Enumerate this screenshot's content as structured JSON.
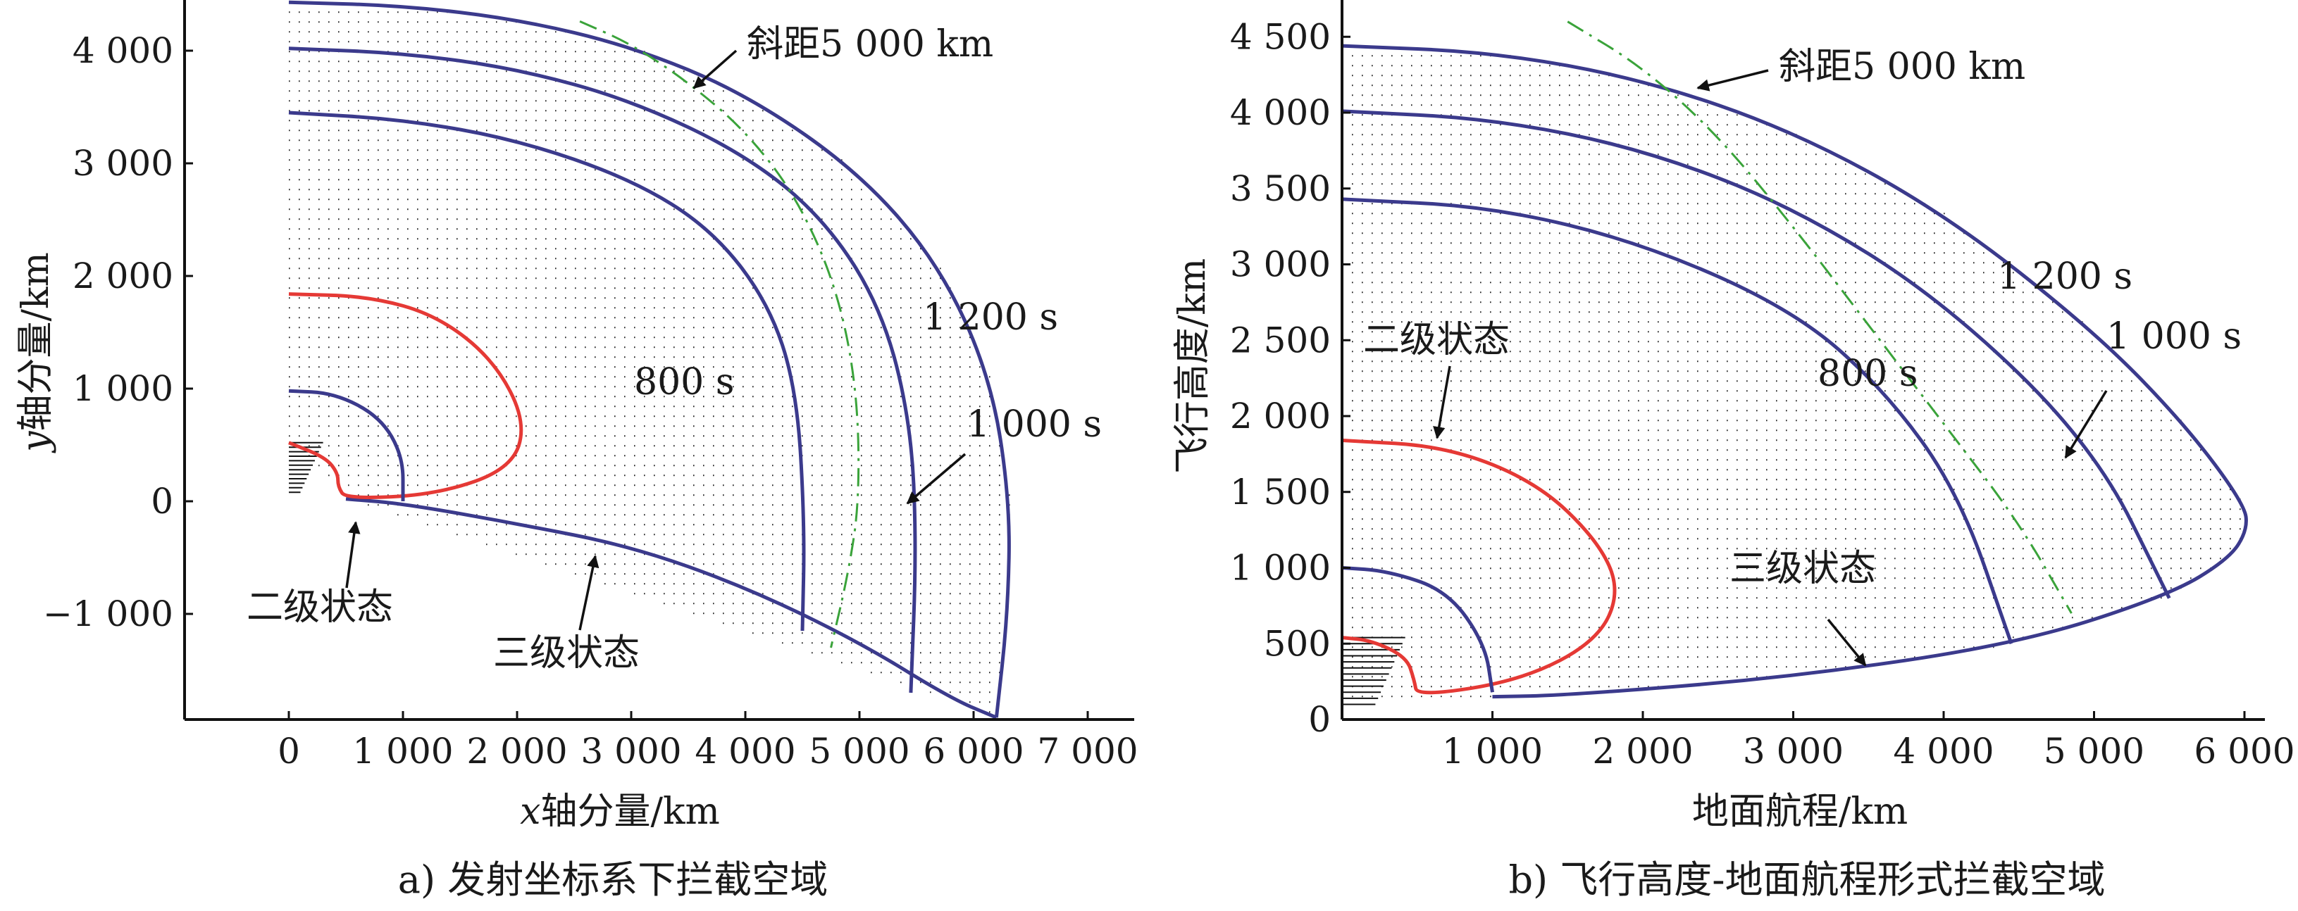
{
  "chart_data": [
    {
      "id": "a",
      "type": "line",
      "title": "a) 发射坐标系下拦截空域",
      "xlabel_italic": "x",
      "xlabel_rest": "轴分量/km",
      "ylabel_italic": "y",
      "ylabel_rest": "轴分量/km",
      "xlim": [
        -900,
        7000
      ],
      "ylim": [
        -1900,
        4450
      ],
      "xticks": [
        0,
        1000,
        2000,
        3000,
        4000,
        5000,
        6000,
        7000
      ],
      "xtick_labels": [
        "0",
        "1 000",
        "2 000",
        "3 000",
        "4 000",
        "5 000",
        "6 000",
        "7 000"
      ],
      "yticks": [
        -1000,
        0,
        1000,
        2000,
        3000,
        4000
      ],
      "ytick_labels": [
        "−1 000",
        "0",
        "1 000",
        "2 000",
        "3 000",
        "4 000"
      ],
      "series": [
        {
          "name": "1 200 s",
          "color": "#3b3a8c",
          "points": [
            [
              0,
              4430
            ],
            [
              1000,
              4400
            ],
            [
              2000,
              4280
            ],
            [
              3000,
              4040
            ],
            [
              4000,
              3620
            ],
            [
              5000,
              2920
            ],
            [
              5700,
              2100
            ],
            [
              6150,
              1100
            ],
            [
              6320,
              0
            ],
            [
              6300,
              -1000
            ],
            [
              6200,
              -1920
            ]
          ]
        },
        {
          "name": "1 000 s",
          "color": "#3b3a8c",
          "points": [
            [
              0,
              4020
            ],
            [
              1000,
              3980
            ],
            [
              2000,
              3840
            ],
            [
              3000,
              3560
            ],
            [
              4000,
              3080
            ],
            [
              4700,
              2500
            ],
            [
              5200,
              1700
            ],
            [
              5450,
              700
            ],
            [
              5500,
              -400
            ],
            [
              5450,
              -1700
            ]
          ]
        },
        {
          "name": "800 s",
          "color": "#3b3a8c",
          "points": [
            [
              0,
              3450
            ],
            [
              1000,
              3390
            ],
            [
              2000,
              3210
            ],
            [
              3000,
              2860
            ],
            [
              3700,
              2420
            ],
            [
              4200,
              1770
            ],
            [
              4450,
              1000
            ],
            [
              4520,
              -200
            ],
            [
              4500,
              -1150
            ]
          ]
        },
        {
          "name": "三级状态",
          "color": "#3b3a8c",
          "points": [
            [
              500,
              20
            ],
            [
              1000,
              -20
            ],
            [
              2000,
              -200
            ],
            [
              3000,
              -400
            ],
            [
              4000,
              -760
            ],
            [
              5000,
              -1250
            ],
            [
              5800,
              -1750
            ],
            [
              6200,
              -1920
            ]
          ]
        },
        {
          "name": "二级状态",
          "color": "#e53935",
          "points": [
            [
              0,
              1840
            ],
            [
              700,
              1820
            ],
            [
              1300,
              1650
            ],
            [
              1800,
              1250
            ],
            [
              2080,
              700
            ],
            [
              1950,
              290
            ],
            [
              1300,
              60
            ],
            [
              500,
              20
            ],
            [
              430,
              130
            ],
            [
              430,
              250
            ],
            [
              320,
              390
            ],
            [
              0,
              520
            ]
          ]
        },
        {
          "name": "",
          "color": "#3b3a8c",
          "points": [
            [
              0,
              980
            ],
            [
              400,
              960
            ],
            [
              800,
              750
            ],
            [
              1000,
              400
            ],
            [
              1000,
              0
            ]
          ]
        },
        {
          "name": "斜距5 000 km",
          "color": "#3aa33a",
          "points": [
            [
              2550,
              4260
            ],
            [
              3000,
              4060
            ],
            [
              3500,
              3720
            ],
            [
              4000,
              3290
            ],
            [
              4450,
              2700
            ],
            [
              4800,
              1900
            ],
            [
              4980,
              1000
            ],
            [
              5000,
              0
            ],
            [
              4900,
              -650
            ],
            [
              4750,
              -1300
            ]
          ]
        }
      ],
      "annotations": [
        "斜距5 000 km",
        "1 200 s",
        "800 s",
        "1 000 s",
        "二级状态",
        "三级状态"
      ]
    },
    {
      "id": "b",
      "type": "line",
      "title": "b) 飞行高度-地面航程形式拦截空域",
      "xlabel": "地面航程/km",
      "ylabel": "飞行高度/km",
      "xlim": [
        0,
        6050
      ],
      "ylim": [
        0,
        4650
      ],
      "xticks": [
        1000,
        2000,
        3000,
        4000,
        5000,
        6000
      ],
      "xtick_labels": [
        "1 000",
        "2 000",
        "3 000",
        "4 000",
        "5 000",
        "6 000"
      ],
      "yticks": [
        0,
        500,
        1000,
        1500,
        2000,
        2500,
        3000,
        3500,
        4000,
        4500
      ],
      "ytick_labels": [
        "0",
        "500",
        "1 000",
        "1 500",
        "2 000",
        "2 500",
        "3 000",
        "3 500",
        "4 000",
        "4 500"
      ],
      "series": [
        {
          "name": "1 200 s",
          "color": "#3b3a8c",
          "points": [
            [
              0,
              4440
            ],
            [
              1000,
              4400
            ],
            [
              2000,
              4220
            ],
            [
              3000,
              3880
            ],
            [
              4000,
              3340
            ],
            [
              5000,
              2560
            ],
            [
              5600,
              1950
            ],
            [
              6000,
              1420
            ],
            [
              6020,
              1250
            ],
            [
              5900,
              1060
            ],
            [
              5500,
              820
            ],
            [
              4500,
              500
            ],
            [
              3000,
              280
            ],
            [
              1500,
              160
            ],
            [
              1000,
              150
            ]
          ]
        },
        {
          "name": "1 000 s",
          "color": "#3b3a8c",
          "points": [
            [
              0,
              4010
            ],
            [
              1000,
              3960
            ],
            [
              2000,
              3760
            ],
            [
              3000,
              3380
            ],
            [
              4000,
              2760
            ],
            [
              5000,
              1800
            ],
            [
              5500,
              800
            ]
          ]
        },
        {
          "name": "800 s",
          "color": "#3b3a8c",
          "points": [
            [
              0,
              3430
            ],
            [
              1000,
              3380
            ],
            [
              2000,
              3140
            ],
            [
              3000,
              2700
            ],
            [
              3600,
              2180
            ],
            [
              4100,
              1500
            ],
            [
              4450,
              500
            ]
          ]
        },
        {
          "name": "二级状态",
          "color": "#e53935",
          "points": [
            [
              0,
              1840
            ],
            [
              700,
              1800
            ],
            [
              1300,
              1560
            ],
            [
              1700,
              1180
            ],
            [
              1850,
              850
            ],
            [
              1700,
              520
            ],
            [
              1200,
              260
            ],
            [
              500,
              150
            ],
            [
              480,
              260
            ],
            [
              430,
              410
            ],
            [
              200,
              520
            ],
            [
              0,
              540
            ]
          ]
        },
        {
          "name": "",
          "color": "#3b3a8c",
          "points": [
            [
              0,
              1000
            ],
            [
              300,
              980
            ],
            [
              700,
              850
            ],
            [
              950,
              500
            ],
            [
              1000,
              180
            ]
          ]
        },
        {
          "name": "斜距5 000 km",
          "color": "#3aa33a",
          "points": [
            [
              1500,
              4600
            ],
            [
              2000,
              4300
            ],
            [
              2500,
              3850
            ],
            [
              3000,
              3250
            ],
            [
              3500,
              2600
            ],
            [
              4000,
              1950
            ],
            [
              4500,
              1300
            ],
            [
              4850,
              700
            ]
          ]
        }
      ],
      "annotations": [
        "斜距5 000 km",
        "1 200 s",
        "1 000 s",
        "二级状态",
        "800 s",
        "三级状态"
      ]
    }
  ]
}
